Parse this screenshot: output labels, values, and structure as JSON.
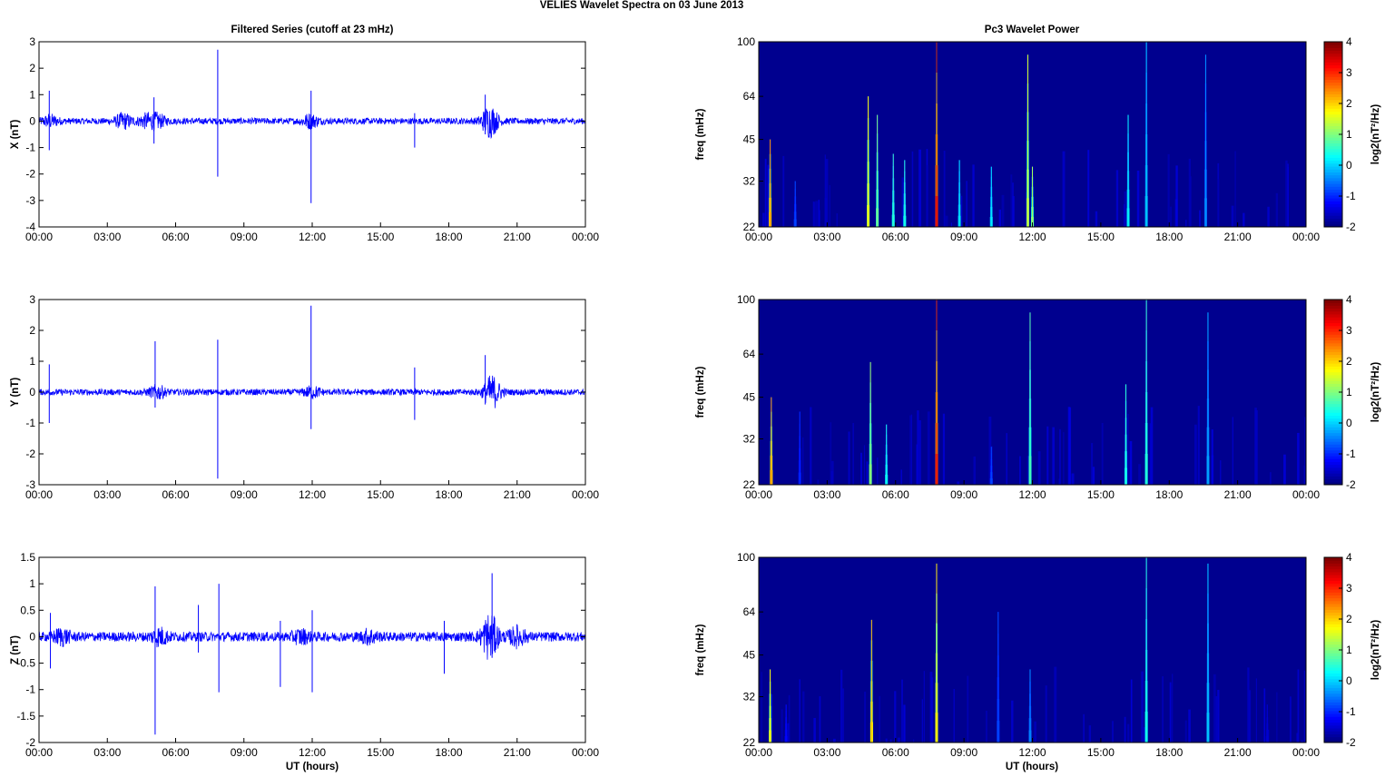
{
  "page": {
    "suptitle": "VELIES Wavelet Spectra on 03 June      2013",
    "left_title": "Filtered Series (cutoff at 23 mHz)",
    "right_title": "Pc3 Wavelet Power",
    "xlabel": "UT (hours)"
  },
  "colors": {
    "trace": "#0000ff",
    "background_power": "#00008f",
    "colormap": "jet"
  },
  "chart_data": [
    {
      "type": "line",
      "ylabel": "X (nT)",
      "xlabel": "",
      "xlim": [
        0,
        24
      ],
      "ylim": [
        -4,
        3
      ],
      "xticks": [
        "00:00",
        "03:00",
        "06:00",
        "09:00",
        "12:00",
        "15:00",
        "18:00",
        "21:00",
        "00:00"
      ],
      "yticks": [
        "3",
        "2",
        "1",
        "0",
        "-1",
        "-2",
        "-3",
        "-4"
      ],
      "noise_amp": 0.12,
      "bursts": [
        {
          "t": 0.5,
          "amp": 0.18
        },
        {
          "t": 3.7,
          "amp": 0.25
        },
        {
          "t": 4.7,
          "amp": 0.2
        },
        {
          "t": 5.2,
          "amp": 0.22
        },
        {
          "t": 11.9,
          "amp": 0.22
        },
        {
          "t": 19.8,
          "amp": 0.55
        }
      ],
      "spikes": [
        {
          "t": 0.45,
          "up": 1.15,
          "down": -1.1
        },
        {
          "t": 5.05,
          "up": 0.9,
          "down": -0.85
        },
        {
          "t": 7.85,
          "up": 2.7,
          "down": -2.1
        },
        {
          "t": 11.95,
          "up": 1.15,
          "down": -3.1
        },
        {
          "t": 16.5,
          "up": 0.3,
          "down": -1.0
        },
        {
          "t": 19.6,
          "up": 1.0,
          "down": -0.5
        }
      ]
    },
    {
      "type": "heatmap",
      "ylabel": "freq (mHz)",
      "xlim": [
        0,
        24
      ],
      "ylim": [
        22,
        100
      ],
      "yscale": "log",
      "yticks": [
        "100",
        "64",
        "45",
        "32",
        "22"
      ],
      "xticks": [
        "00:00",
        "03:00",
        "06:00",
        "09:00",
        "12:00",
        "15:00",
        "18:00",
        "21:00",
        "00:00"
      ],
      "colorbar_label": "log2(nT²/Hz)",
      "clim": [
        -2,
        4
      ],
      "colorbar_ticks": [
        "4",
        "3",
        "2",
        "1",
        "0",
        "-1",
        "-2"
      ],
      "events": [
        {
          "t": 0.5,
          "fmax": 45,
          "peak": 2.5
        },
        {
          "t": 1.6,
          "fmax": 32,
          "peak": -0.8
        },
        {
          "t": 4.8,
          "fmax": 64,
          "peak": 1.8
        },
        {
          "t": 5.2,
          "fmax": 55,
          "peak": 1.0
        },
        {
          "t": 5.9,
          "fmax": 40,
          "peak": 0.6
        },
        {
          "t": 6.4,
          "fmax": 38,
          "peak": 0.5
        },
        {
          "t": 7.8,
          "fmax": 100,
          "peak": 3.6
        },
        {
          "t": 8.8,
          "fmax": 38,
          "peak": 0.2
        },
        {
          "t": 10.2,
          "fmax": 36,
          "peak": 0.2
        },
        {
          "t": 11.8,
          "fmax": 90,
          "peak": 1.5
        },
        {
          "t": 12.0,
          "fmax": 36,
          "peak": 1.2
        },
        {
          "t": 16.2,
          "fmax": 55,
          "peak": 0.3
        },
        {
          "t": 17.0,
          "fmax": 100,
          "peak": 0.0
        },
        {
          "t": 19.6,
          "fmax": 90,
          "peak": -0.4
        }
      ]
    },
    {
      "type": "line",
      "ylabel": "Y (nT)",
      "xlabel": "",
      "xlim": [
        0,
        24
      ],
      "ylim": [
        -3,
        3
      ],
      "xticks": [
        "00:00",
        "03:00",
        "06:00",
        "09:00",
        "12:00",
        "15:00",
        "18:00",
        "21:00",
        "00:00"
      ],
      "yticks": [
        "3",
        "2",
        "1",
        "0",
        "-1",
        "-2",
        "-3"
      ],
      "noise_amp": 0.1,
      "bursts": [
        {
          "t": 5.2,
          "amp": 0.18
        },
        {
          "t": 12.0,
          "amp": 0.15
        },
        {
          "t": 19.9,
          "amp": 0.5
        }
      ],
      "spikes": [
        {
          "t": 0.45,
          "up": 0.9,
          "down": -1.0
        },
        {
          "t": 5.1,
          "up": 1.65,
          "down": -0.5
        },
        {
          "t": 7.85,
          "up": 1.7,
          "down": -2.8
        },
        {
          "t": 11.95,
          "up": 2.8,
          "down": -1.2
        },
        {
          "t": 16.5,
          "up": 0.8,
          "down": -0.9
        },
        {
          "t": 19.6,
          "up": 1.2,
          "down": -0.4
        }
      ]
    },
    {
      "type": "heatmap",
      "ylabel": "freq (mHz)",
      "xlim": [
        0,
        24
      ],
      "ylim": [
        22,
        100
      ],
      "yscale": "log",
      "yticks": [
        "100",
        "64",
        "45",
        "32",
        "22"
      ],
      "xticks": [
        "00:00",
        "03:00",
        "06:00",
        "09:00",
        "12:00",
        "15:00",
        "18:00",
        "21:00",
        "00:00"
      ],
      "colorbar_label": "log2(nT²/Hz)",
      "clim": [
        -2,
        4
      ],
      "colorbar_ticks": [
        "4",
        "3",
        "2",
        "1",
        "0",
        "-1",
        "-2"
      ],
      "events": [
        {
          "t": 0.55,
          "fmax": 45,
          "peak": 2.5
        },
        {
          "t": 1.8,
          "fmax": 40,
          "peak": -1.0
        },
        {
          "t": 4.9,
          "fmax": 60,
          "peak": 1.2
        },
        {
          "t": 5.6,
          "fmax": 36,
          "peak": 0.4
        },
        {
          "t": 7.8,
          "fmax": 100,
          "peak": 3.5
        },
        {
          "t": 10.2,
          "fmax": 30,
          "peak": -0.8
        },
        {
          "t": 11.9,
          "fmax": 90,
          "peak": 0.8
        },
        {
          "t": 16.1,
          "fmax": 50,
          "peak": 0.5
        },
        {
          "t": 17.0,
          "fmax": 100,
          "peak": 0.6
        },
        {
          "t": 19.7,
          "fmax": 90,
          "peak": -0.2
        }
      ]
    },
    {
      "type": "line",
      "ylabel": "Z (nT)",
      "xlabel": "UT (hours)",
      "xlim": [
        0,
        24
      ],
      "ylim": [
        -2,
        1.5
      ],
      "xticks": [
        "00:00",
        "03:00",
        "06:00",
        "09:00",
        "12:00",
        "15:00",
        "18:00",
        "21:00",
        "00:00"
      ],
      "yticks": [
        "1.5",
        "1",
        "0.5",
        "0",
        "-0.5",
        "-1",
        "-1.5",
        "-2"
      ],
      "noise_amp": 0.09,
      "bursts": [
        {
          "t": 1.0,
          "amp": 0.12
        },
        {
          "t": 5.3,
          "amp": 0.13
        },
        {
          "t": 11.5,
          "amp": 0.1
        },
        {
          "t": 14.5,
          "amp": 0.1
        },
        {
          "t": 19.8,
          "amp": 0.4
        },
        {
          "t": 21.0,
          "amp": 0.15
        }
      ],
      "spikes": [
        {
          "t": 0.5,
          "up": 0.45,
          "down": -0.6
        },
        {
          "t": 5.1,
          "up": 0.95,
          "down": -1.85
        },
        {
          "t": 7.0,
          "up": 0.6,
          "down": -0.3
        },
        {
          "t": 7.9,
          "up": 1.0,
          "down": -1.05
        },
        {
          "t": 10.6,
          "up": 0.3,
          "down": -0.95
        },
        {
          "t": 12.0,
          "up": 0.5,
          "down": -1.05
        },
        {
          "t": 17.8,
          "up": 0.3,
          "down": -0.7
        },
        {
          "t": 19.9,
          "up": 1.2,
          "down": -0.4
        }
      ]
    },
    {
      "type": "heatmap",
      "ylabel": "freq (mHz)",
      "xlim": [
        0,
        24
      ],
      "ylim": [
        22,
        100
      ],
      "yscale": "log",
      "yticks": [
        "100",
        "64",
        "45",
        "32",
        "22"
      ],
      "xticks": [
        "00:00",
        "03:00",
        "06:00",
        "09:00",
        "12:00",
        "15:00",
        "18:00",
        "21:00",
        "00:00"
      ],
      "colorbar_label": "log2(nT²/Hz)",
      "clim": [
        -2,
        4
      ],
      "colorbar_ticks": [
        "4",
        "3",
        "2",
        "1",
        "0",
        "-1",
        "-2"
      ],
      "events": [
        {
          "t": 0.5,
          "fmax": 40,
          "peak": 1.8
        },
        {
          "t": 1.2,
          "fmax": 30,
          "peak": -1.2
        },
        {
          "t": 4.95,
          "fmax": 60,
          "peak": 2.2
        },
        {
          "t": 7.8,
          "fmax": 95,
          "peak": 2.0
        },
        {
          "t": 10.5,
          "fmax": 64,
          "peak": -0.8
        },
        {
          "t": 11.9,
          "fmax": 40,
          "peak": -0.4
        },
        {
          "t": 17.0,
          "fmax": 100,
          "peak": 0.5
        },
        {
          "t": 19.7,
          "fmax": 95,
          "peak": 0.0
        },
        {
          "t": 22.3,
          "fmax": 30,
          "peak": -1.5
        }
      ]
    }
  ]
}
